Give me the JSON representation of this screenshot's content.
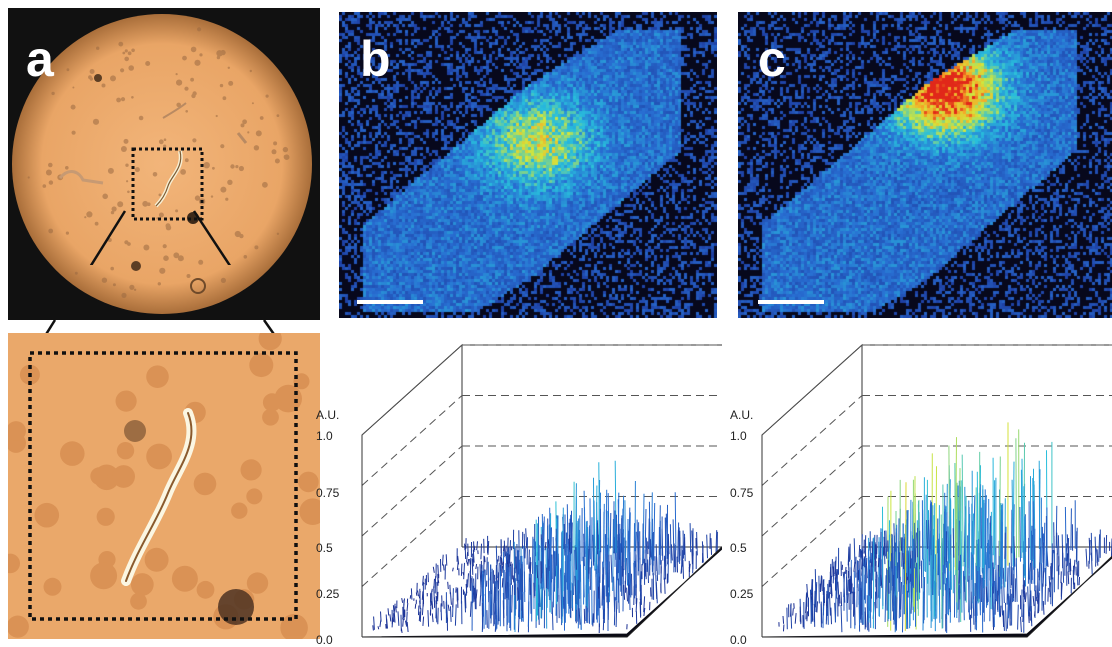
{
  "figure": {
    "panels": [
      {
        "id": "a",
        "letter": "a",
        "kind": "micrograph"
      },
      {
        "id": "b",
        "letter": "b",
        "kind": "intensity-map"
      },
      {
        "id": "c",
        "letter": "c",
        "kind": "intensity-map"
      }
    ],
    "colors": {
      "background": "#ffffff",
      "micrograph_field": "#eaa86a",
      "map_background": "#07081c",
      "colormap_low": "#1f3a9e",
      "colormap_mid": "#27b4d6",
      "colormap_high": "#f3e33a",
      "colormap_peak": "#e0261a",
      "dotted_frame": "#111111"
    }
  },
  "chart_data": [
    {
      "type": "surface3d",
      "panel": "b",
      "zlabel": "A.U.",
      "z_ticks": [
        "1.0",
        "0.75",
        "0.5",
        "0.25",
        "0.0"
      ],
      "zlim": [
        0,
        1.0
      ],
      "z_tick_values": [
        1.0,
        0.75,
        0.5,
        0.25,
        0.0
      ],
      "approx_peak": 0.68,
      "grid": "dashed"
    },
    {
      "type": "surface3d",
      "panel": "c",
      "zlabel": "A.U.",
      "z_ticks": [
        "1.0",
        "0.75",
        "0.5",
        "0.25",
        "0.0"
      ],
      "zlim": [
        0,
        1.0
      ],
      "z_tick_values": [
        1.0,
        0.75,
        0.5,
        0.25,
        0.0
      ],
      "approx_peak": 1.0,
      "grid": "dashed"
    }
  ]
}
